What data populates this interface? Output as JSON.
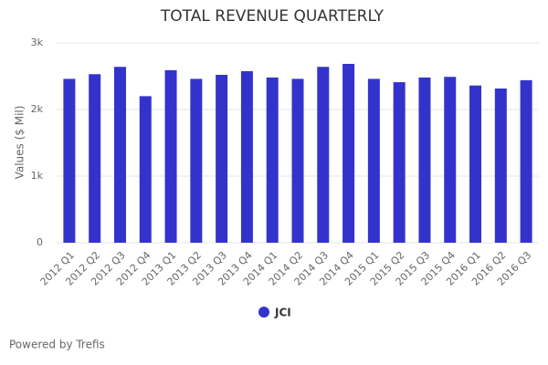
{
  "chart_data": {
    "type": "bar",
    "title": "TOTAL REVENUE QUARTERLY",
    "y_label": "Values ($ Mil)",
    "categories": [
      "2012 Q1",
      "2012 Q2",
      "2012 Q3",
      "2012 Q4",
      "2013 Q1",
      "2013 Q2",
      "2013 Q3",
      "2013 Q4",
      "2014 Q1",
      "2014 Q2",
      "2014 Q3",
      "2014 Q4",
      "2015 Q1",
      "2015 Q2",
      "2015 Q3",
      "2015 Q4",
      "2016 Q1",
      "2016 Q2",
      "2016 Q3"
    ],
    "series": [
      {
        "name": "JCI",
        "color": "#3333cc",
        "values": [
          2460,
          2530,
          2640,
          2200,
          2590,
          2460,
          2520,
          2575,
          2480,
          2460,
          2640,
          2685,
          2460,
          2410,
          2480,
          2490,
          2360,
          2315,
          2440
        ]
      }
    ],
    "ylim": [
      0,
      3000
    ],
    "yticks": [
      0,
      {
        "value": 1000,
        "label": "1k"
      },
      {
        "value": 2000,
        "label": "2k"
      },
      {
        "value": 3000,
        "label": "3k"
      }
    ],
    "grid": true,
    "credit": "Powered by Trefis"
  }
}
